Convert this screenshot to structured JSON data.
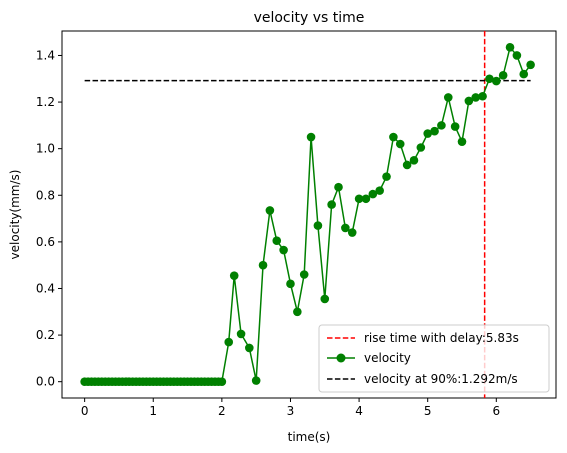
{
  "chart_data": {
    "type": "line",
    "title": "velocity vs time",
    "xlabel": "time(s)",
    "ylabel": "velocity(mm/s)",
    "xlim": [
      -0.33,
      6.87
    ],
    "ylim": [
      -0.07,
      1.505
    ],
    "xticks": [
      0,
      1,
      2,
      3,
      4,
      5,
      6
    ],
    "yticks": [
      0.0,
      0.2,
      0.4,
      0.6,
      0.8,
      1.0,
      1.2,
      1.4
    ],
    "ytick_labels": [
      "0.0",
      "0.2",
      "0.4",
      "0.6",
      "0.8",
      "1.0",
      "1.2",
      "1.4"
    ],
    "grid": false,
    "legend_position": "lower-right",
    "series": [
      {
        "name": "velocity",
        "color": "#008000",
        "marker": "circle",
        "x": [
          0.0,
          0.05,
          0.1,
          0.15,
          0.2,
          0.25,
          0.3,
          0.35,
          0.4,
          0.45,
          0.5,
          0.55,
          0.6,
          0.65,
          0.7,
          0.75,
          0.8,
          0.85,
          0.9,
          0.95,
          1.0,
          1.05,
          1.1,
          1.15,
          1.2,
          1.25,
          1.3,
          1.35,
          1.4,
          1.45,
          1.5,
          1.55,
          1.6,
          1.65,
          1.7,
          1.75,
          1.8,
          1.85,
          1.9,
          1.95,
          2.0,
          2.1,
          2.18,
          2.28,
          2.4,
          2.5,
          2.6,
          2.7,
          2.8,
          2.9,
          3.0,
          3.1,
          3.2,
          3.3,
          3.4,
          3.5,
          3.6,
          3.7,
          3.8,
          3.9,
          4.0,
          4.1,
          4.2,
          4.3,
          4.4,
          4.5,
          4.6,
          4.7,
          4.8,
          4.9,
          5.0,
          5.1,
          5.2,
          5.3,
          5.4,
          5.5,
          5.6,
          5.7,
          5.8,
          5.9,
          6.0,
          6.1,
          6.2,
          6.3,
          6.4,
          6.5
        ],
        "y": [
          0,
          0,
          0,
          0,
          0,
          0,
          0,
          0,
          0,
          0,
          0,
          0,
          0,
          0,
          0,
          0,
          0,
          0,
          0,
          0,
          0,
          0,
          0,
          0,
          0,
          0,
          0,
          0,
          0,
          0,
          0,
          0,
          0,
          0,
          0,
          0,
          0,
          0,
          0,
          0,
          0,
          0.17,
          0.455,
          0.205,
          0.145,
          0.005,
          0.5,
          0.735,
          0.605,
          0.565,
          0.42,
          0.3,
          0.46,
          1.05,
          0.67,
          0.355,
          0.76,
          0.835,
          0.66,
          0.64,
          0.785,
          0.785,
          0.805,
          0.82,
          0.88,
          1.05,
          1.02,
          0.93,
          0.95,
          1.005,
          1.065,
          1.075,
          1.1,
          1.22,
          1.095,
          1.03,
          1.205,
          1.22,
          1.225,
          1.3,
          1.29,
          1.315,
          1.435,
          1.4,
          1.32,
          1.36
        ]
      }
    ],
    "reference_lines": [
      {
        "orientation": "vertical",
        "value": 5.83,
        "color": "#ff0000",
        "style": "dashed",
        "legend": "rise time with delay:5.83s"
      },
      {
        "orientation": "horizontal",
        "value": 1.292,
        "from_x": 0.0,
        "to_x": 6.5,
        "color": "#000000",
        "style": "dashed",
        "legend": "velocity at 90%:1.292m/s"
      }
    ],
    "legend": [
      {
        "label": "rise time with delay:5.83s",
        "kind": "dashed-line",
        "color": "#ff0000"
      },
      {
        "label": "velocity",
        "kind": "line-marker",
        "color": "#008000"
      },
      {
        "label": "velocity at 90%:1.292m/s",
        "kind": "dashed-line",
        "color": "#000000"
      }
    ]
  }
}
